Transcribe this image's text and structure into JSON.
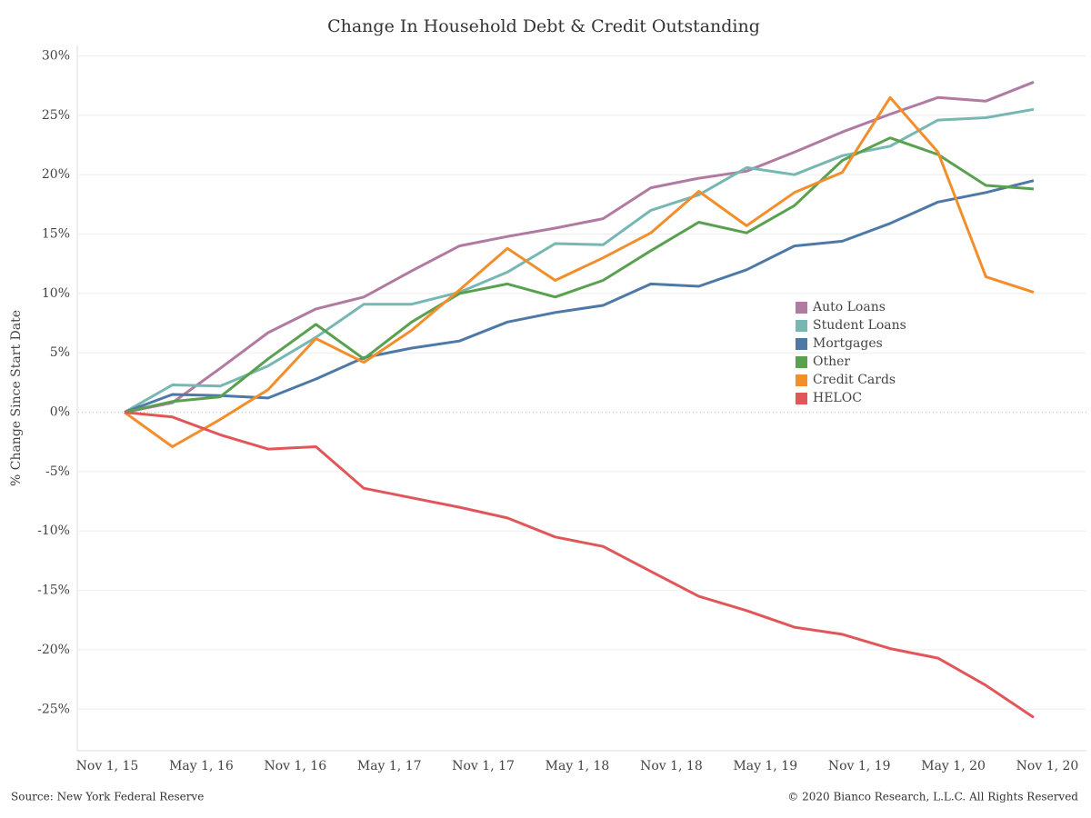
{
  "chart_data": {
    "type": "line",
    "title": "Change In Household Debt & Credit Outstanding",
    "y_label": "% Change Since Start Date",
    "source": "Source: New York Federal Reserve",
    "copyright": "© 2020 Bianco Research, L.L.C. All Rights Reserved",
    "xticks": [
      "Nov 1, 15",
      "May 1, 16",
      "Nov 1, 16",
      "May 1, 17",
      "Nov 1, 17",
      "May 1, 18",
      "Nov 1, 18",
      "May 1, 19",
      "Nov 1, 19",
      "May 1, 20",
      "Nov 1, 20"
    ],
    "ylim": [
      -28.5,
      30.5
    ],
    "yticks": [
      {
        "value": 30,
        "label": "30%"
      },
      {
        "value": 25,
        "label": "25%"
      },
      {
        "value": 20,
        "label": "20%"
      },
      {
        "value": 15,
        "label": "15%"
      },
      {
        "value": 10,
        "label": "10%"
      },
      {
        "value": 5,
        "label": "5%"
      },
      {
        "value": 0,
        "label": "0%"
      },
      {
        "value": -5,
        "label": "-5%"
      },
      {
        "value": -10,
        "label": "-10%"
      },
      {
        "value": -15,
        "label": "-15%"
      },
      {
        "value": -20,
        "label": "-20%"
      },
      {
        "value": -25,
        "label": "-25%"
      }
    ],
    "grid": true,
    "series": [
      {
        "name": "Auto Loans",
        "color": "#b07aa1",
        "values": [
          0,
          0.8,
          3.7,
          6.7,
          8.7,
          9.7,
          11.9,
          14.0,
          14.8,
          15.5,
          16.3,
          18.9,
          19.7,
          20.3,
          21.9,
          23.6,
          25.1,
          26.5,
          26.2,
          27.8
        ]
      },
      {
        "name": "Student Loans",
        "color": "#76b7b2",
        "values": [
          0,
          2.3,
          2.2,
          3.9,
          6.3,
          9.1,
          9.1,
          10.1,
          11.8,
          14.2,
          14.1,
          17.0,
          18.3,
          20.6,
          20.0,
          21.6,
          22.4,
          24.6,
          24.8,
          25.5
        ]
      },
      {
        "name": "Mortgages",
        "color": "#4e79a7",
        "values": [
          0,
          1.5,
          1.4,
          1.2,
          2.8,
          4.6,
          5.4,
          6.0,
          7.6,
          8.4,
          9.0,
          10.8,
          10.6,
          12.0,
          14.0,
          14.4,
          15.9,
          17.7,
          18.5,
          19.5
        ]
      },
      {
        "name": "Other",
        "color": "#59a14f",
        "values": [
          0,
          0.9,
          1.3,
          4.5,
          7.4,
          4.5,
          7.6,
          10.0,
          10.8,
          9.7,
          11.1,
          13.6,
          16.0,
          15.1,
          17.4,
          21.2,
          23.1,
          21.7,
          19.1,
          18.8
        ]
      },
      {
        "name": "Credit Cards",
        "color": "#f28e2b",
        "values": [
          0,
          -2.9,
          -0.6,
          1.9,
          6.2,
          4.2,
          6.9,
          10.3,
          13.8,
          11.1,
          13.0,
          15.1,
          18.6,
          15.7,
          18.5,
          20.2,
          26.5,
          21.9,
          11.4,
          10.1
        ]
      },
      {
        "name": "HELOC",
        "color": "#e15759",
        "values": [
          0,
          -0.4,
          -1.9,
          -3.1,
          -2.9,
          -6.4,
          -7.2,
          -8.0,
          -8.9,
          -10.5,
          -11.3,
          -13.4,
          -15.5,
          -16.7,
          -18.1,
          -18.7,
          -19.9,
          -20.7,
          -23.0,
          -25.7
        ]
      }
    ]
  }
}
